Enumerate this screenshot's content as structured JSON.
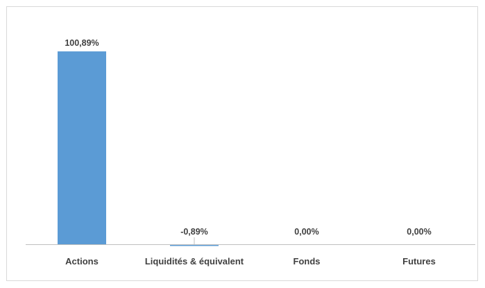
{
  "chart_data": {
    "type": "bar",
    "title": "",
    "xlabel": "",
    "ylabel": "",
    "categories": [
      "Actions",
      "Liquidités & équivalent",
      "Fonds",
      "Futures"
    ],
    "values": [
      100.89,
      -0.89,
      0.0,
      0.0
    ],
    "data_labels": [
      "100,89%",
      "-0,89%",
      "0,00%",
      "0,00%"
    ],
    "ylim": [
      -2,
      112
    ],
    "grid": false,
    "legend": "none",
    "bar_color": "#5b9bd5",
    "axis_color": "#bfbfbf",
    "text_color": "#404040"
  }
}
